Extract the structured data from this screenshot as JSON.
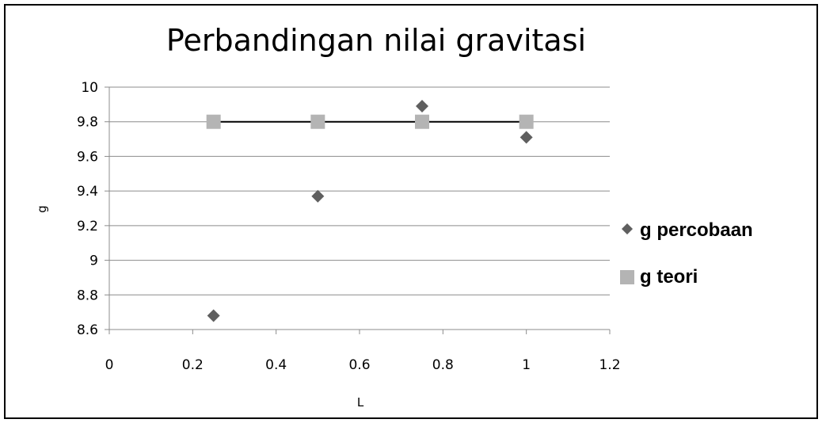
{
  "chart_data": {
    "type": "scatter",
    "title": "Perbandingan nilai gravitasi",
    "xlabel": "L",
    "ylabel": "g",
    "xlim": [
      0,
      1.2
    ],
    "ylim": [
      8.6,
      10
    ],
    "x_ticks": [
      "0",
      "0.2",
      "0.4",
      "0.6",
      "0.8",
      "1",
      "1.2"
    ],
    "y_ticks": [
      "8.6",
      "8.8",
      "9",
      "9.2",
      "9.4",
      "9.6",
      "9.8",
      "10"
    ],
    "grid": "horizontal",
    "legend_position": "right",
    "series": [
      {
        "name": "g percobaan",
        "marker": "diamond",
        "color": "#5f5f5f",
        "points": [
          {
            "x": 0.25,
            "y": 8.68
          },
          {
            "x": 0.5,
            "y": 9.37
          },
          {
            "x": 0.75,
            "y": 9.89
          },
          {
            "x": 1.0,
            "y": 9.71
          }
        ]
      },
      {
        "name": "g teori",
        "marker": "square",
        "color": "#b4b4b4",
        "line_color": "#000000",
        "points": [
          {
            "x": 0.25,
            "y": 9.8
          },
          {
            "x": 0.5,
            "y": 9.8
          },
          {
            "x": 0.75,
            "y": 9.8
          },
          {
            "x": 1.0,
            "y": 9.8
          }
        ]
      }
    ]
  }
}
